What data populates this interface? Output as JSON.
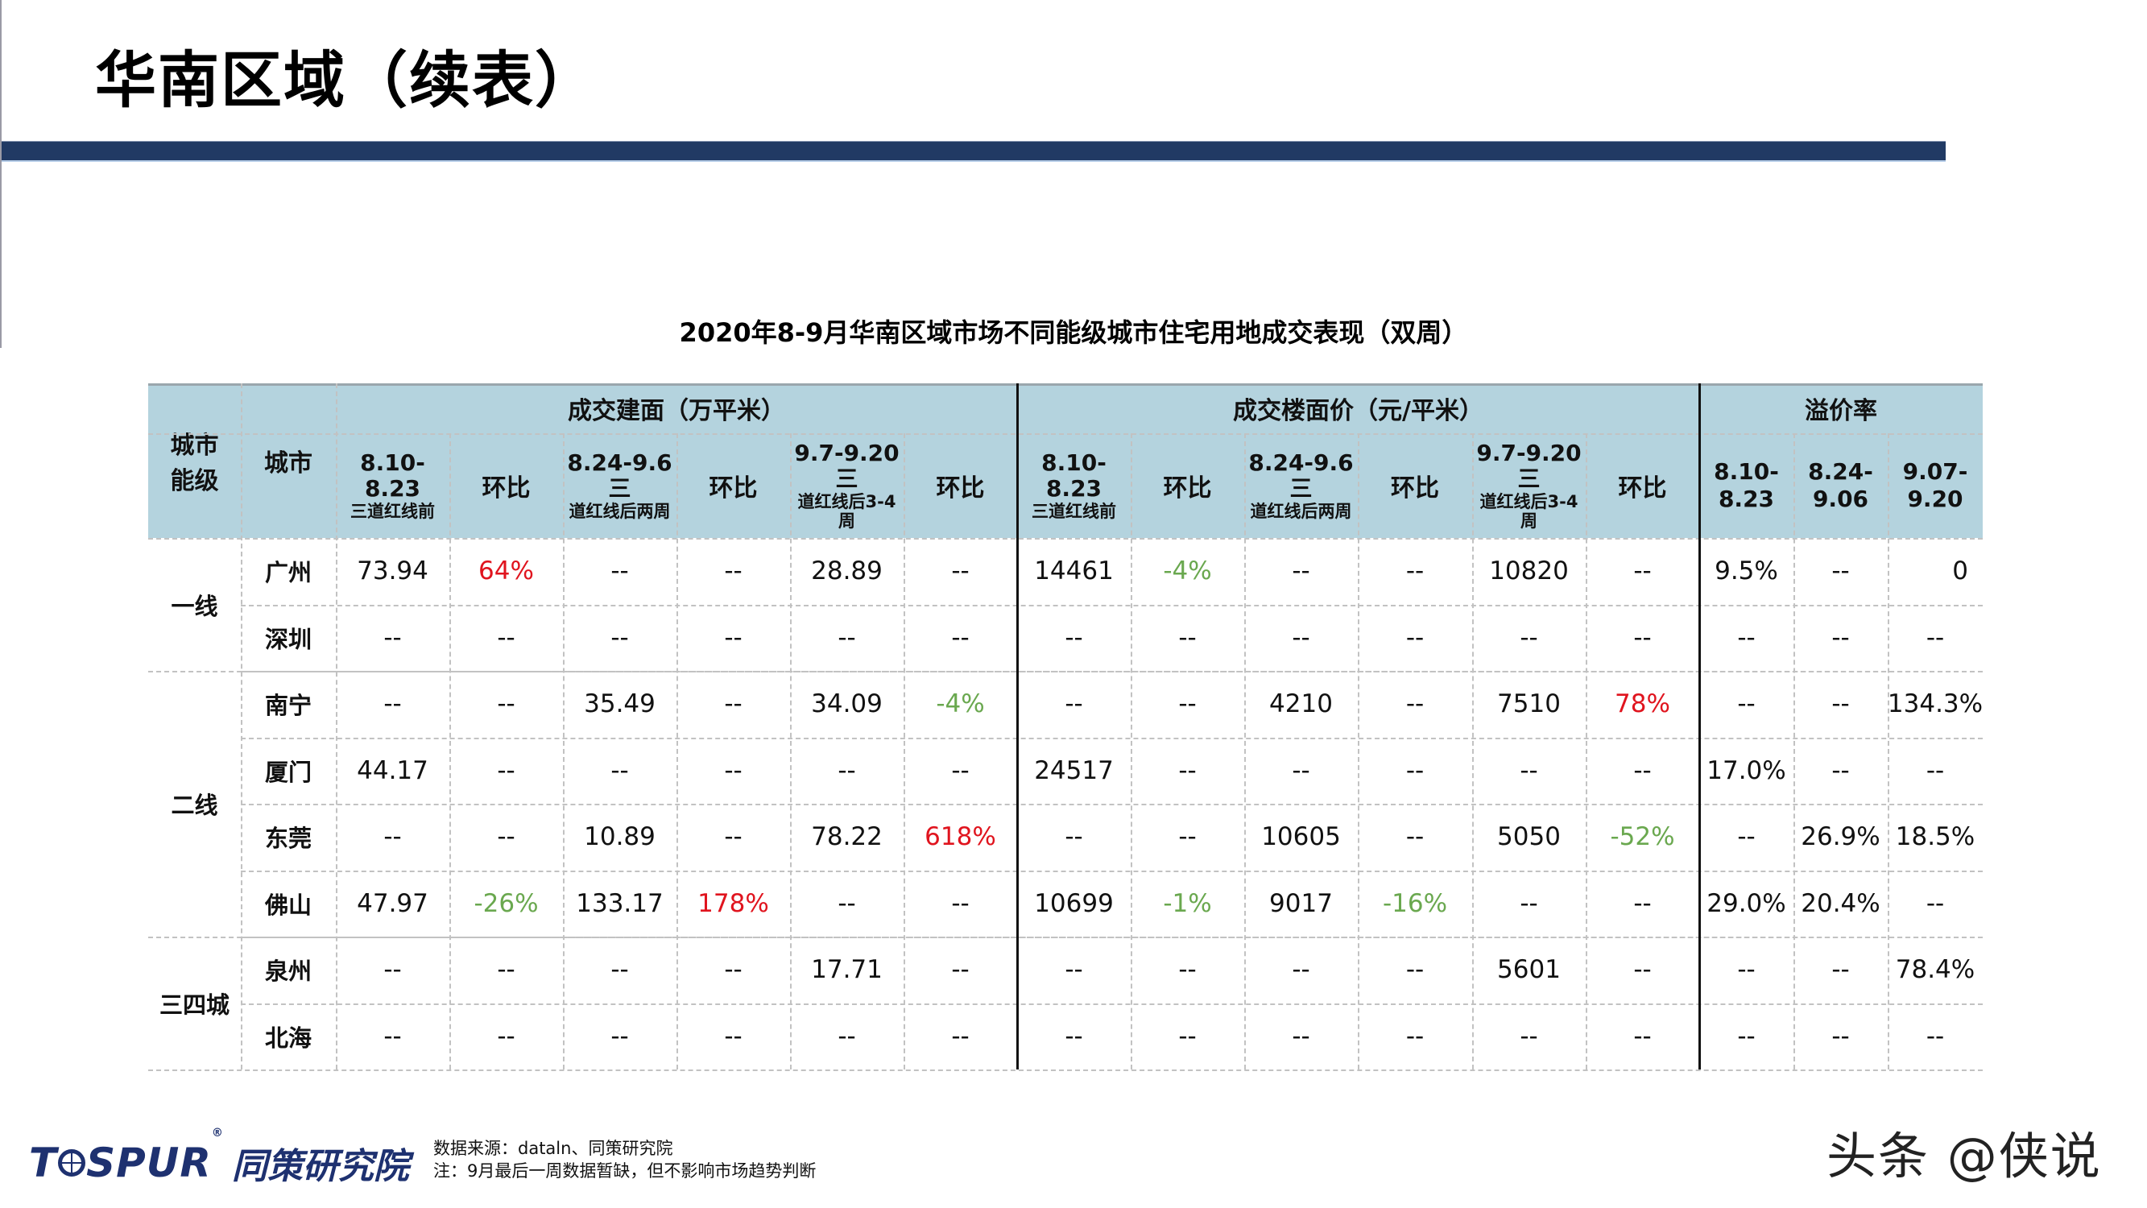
{
  "page": {
    "title": "华南区域（续表）",
    "table_title": "2020年8-9月华南区域市场不同能级城市住宅用地成交表现（双周）"
  },
  "colors": {
    "title_bar": "#213a64",
    "header_bg": "#b4d3de",
    "increase": "#e0141e",
    "decrease": "#6aa84f"
  },
  "table": {
    "group_headers": [
      "成交建面（万平米）",
      "成交楼面价（元/平米）",
      "溢价率"
    ],
    "col_headers": [
      {
        "main": "城市\n能级",
        "sub": ""
      },
      {
        "main": "城市",
        "sub": ""
      },
      {
        "main": "8.10-8.23",
        "sub": "三道红线前"
      },
      {
        "main": "环比",
        "sub": ""
      },
      {
        "main": "8.24-9.6三",
        "sub": "道红线后两周"
      },
      {
        "main": "环比",
        "sub": ""
      },
      {
        "main": "9.7-9.20三",
        "sub": "道红线后3-4\n周"
      },
      {
        "main": "环比",
        "sub": ""
      },
      {
        "main": "8.10-8.23",
        "sub": "三道红线前"
      },
      {
        "main": "环比",
        "sub": ""
      },
      {
        "main": "8.24-9.6三",
        "sub": "道红线后两周"
      },
      {
        "main": "环比",
        "sub": ""
      },
      {
        "main": "9.7-9.20三",
        "sub": "道红线后3-4\n周"
      },
      {
        "main": "环比",
        "sub": ""
      },
      {
        "main": "8.10-\n8.23",
        "sub": ""
      },
      {
        "main": "8.24-\n9.06",
        "sub": ""
      },
      {
        "main": "9.07-\n9.20",
        "sub": ""
      }
    ],
    "tiers": [
      {
        "label": "一线",
        "rows": 2
      },
      {
        "label": "二线",
        "rows": 4
      },
      {
        "label": "三四城",
        "rows": 2
      }
    ],
    "rows": [
      {
        "city": "广州",
        "values": [
          "73.94",
          "64%",
          "--",
          "--",
          "28.89",
          "--",
          "14461",
          "-4%",
          "--",
          "--",
          "10820",
          "--",
          "9.5%",
          "--",
          "0"
        ]
      },
      {
        "city": "深圳",
        "values": [
          "--",
          "--",
          "--",
          "--",
          "--",
          "--",
          "--",
          "--",
          "--",
          "--",
          "--",
          "--",
          "--",
          "--",
          "--"
        ]
      },
      {
        "city": "南宁",
        "values": [
          "--",
          "--",
          "35.49",
          "--",
          "34.09",
          "-4%",
          "--",
          "--",
          "4210",
          "--",
          "7510",
          "78%",
          "--",
          "--",
          "134.3%"
        ]
      },
      {
        "city": "厦门",
        "values": [
          "44.17",
          "--",
          "--",
          "--",
          "--",
          "--",
          "24517",
          "--",
          "--",
          "--",
          "--",
          "--",
          "17.0%",
          "--",
          "--"
        ]
      },
      {
        "city": "东莞",
        "values": [
          "--",
          "--",
          "10.89",
          "--",
          "78.22",
          "618%",
          "--",
          "--",
          "10605",
          "--",
          "5050",
          "-52%",
          "--",
          "26.9%",
          "18.5%"
        ]
      },
      {
        "city": "佛山",
        "values": [
          "47.97",
          "-26%",
          "133.17",
          "178%",
          "--",
          "--",
          "10699",
          "-1%",
          "9017",
          "-16%",
          "--",
          "--",
          "29.0%",
          "20.4%",
          "--"
        ]
      },
      {
        "city": "泉州",
        "values": [
          "--",
          "--",
          "--",
          "--",
          "17.71",
          "--",
          "--",
          "--",
          "--",
          "--",
          "5601",
          "--",
          "--",
          "--",
          "78.4%"
        ]
      },
      {
        "city": "北海",
        "values": [
          "--",
          "--",
          "--",
          "--",
          "--",
          "--",
          "--",
          "--",
          "--",
          "--",
          "--",
          "--",
          "--",
          "--",
          "--"
        ]
      }
    ]
  },
  "footer": {
    "logo_en": "TOSPUR",
    "logo_cn": "同策研究院",
    "source": "数据来源：dataln、同策研究院",
    "note": "注：9月最后一周数据暂缺，但不影响市场趋势判断",
    "watermark": "头条 @侠说"
  }
}
